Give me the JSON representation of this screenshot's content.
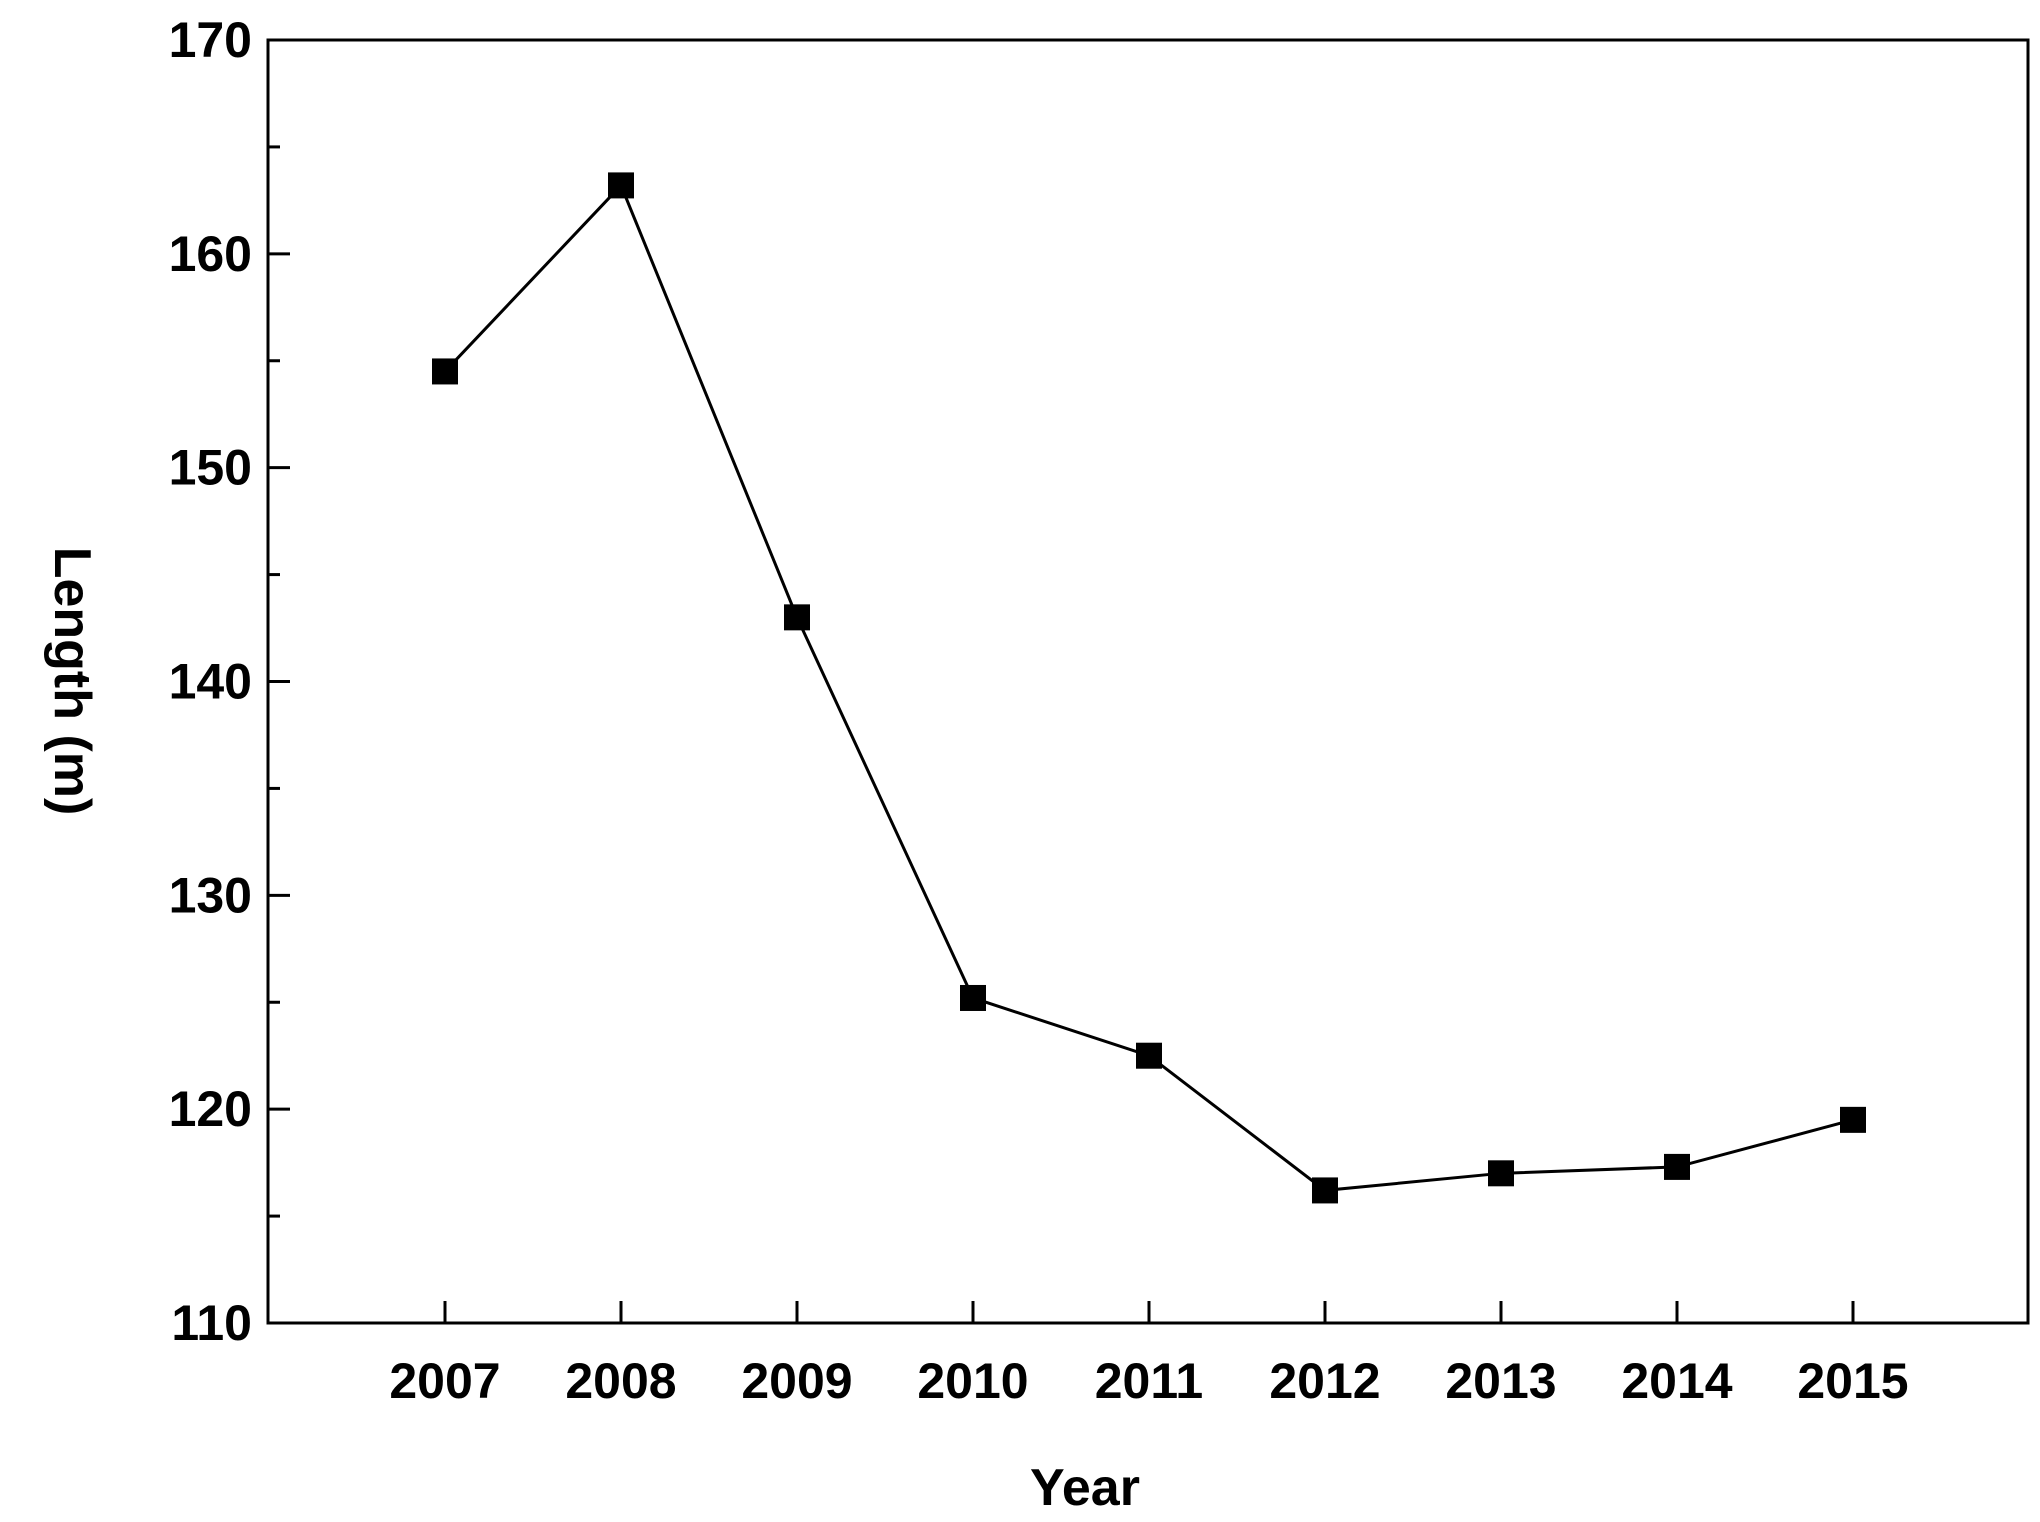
{
  "chart_data": {
    "type": "line",
    "title": "",
    "xlabel": "Year",
    "ylabel": "Length (m)",
    "x": [
      "2007",
      "2008",
      "2009",
      "2010",
      "2011",
      "2012",
      "2013",
      "2014",
      "2015"
    ],
    "series": [
      {
        "values": [
          154.5,
          163.2,
          143.0,
          125.2,
          122.5,
          116.2,
          117.0,
          117.3,
          119.5
        ]
      }
    ],
    "ylim": [
      110,
      170
    ],
    "yticks": [
      110,
      120,
      130,
      140,
      150,
      160,
      170
    ],
    "yticks_minor": [
      115,
      125,
      135,
      145,
      155,
      165
    ],
    "marker": "square",
    "grid": false,
    "legend": "none",
    "colors": {
      "line": "#000000",
      "marker": "#000000",
      "axis": "#000000"
    }
  }
}
